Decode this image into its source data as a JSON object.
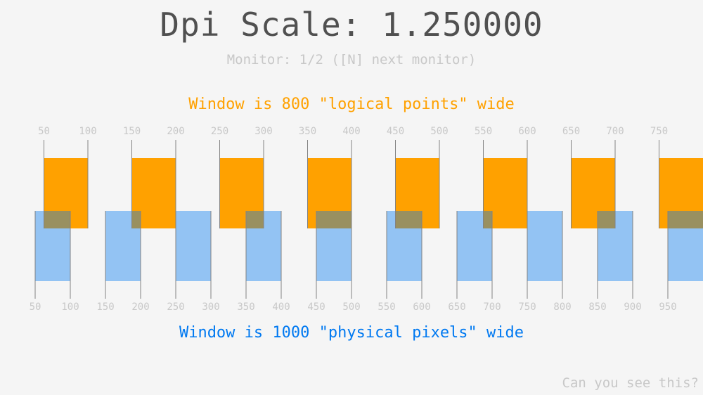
{
  "title": "Dpi Scale: 1.250000",
  "monitor_text": "Monitor: 1/2 ([N] next monitor)",
  "logical_text": "Window is 800 \"logical points\" wide",
  "physical_text": "Window is 1000 \"physical pixels\" wide",
  "corner_text": "Can you see this?",
  "dpi_scale": 1.25,
  "logical_marks": [
    50,
    100,
    150,
    200,
    250,
    300,
    350,
    400,
    450,
    500,
    550,
    600,
    650,
    700,
    750
  ],
  "physical_marks": [
    50,
    100,
    150,
    200,
    250,
    300,
    350,
    400,
    450,
    500,
    550,
    600,
    650,
    700,
    750,
    800,
    850,
    900,
    950
  ],
  "colors": {
    "background": "#f5f5f5",
    "logical": "#ffa100",
    "physical": "#0079f1",
    "physical_rect": "rgba(0,121,241,0.4)",
    "line": "#828282",
    "muted": "#c8c8c8",
    "title": "#505050"
  }
}
